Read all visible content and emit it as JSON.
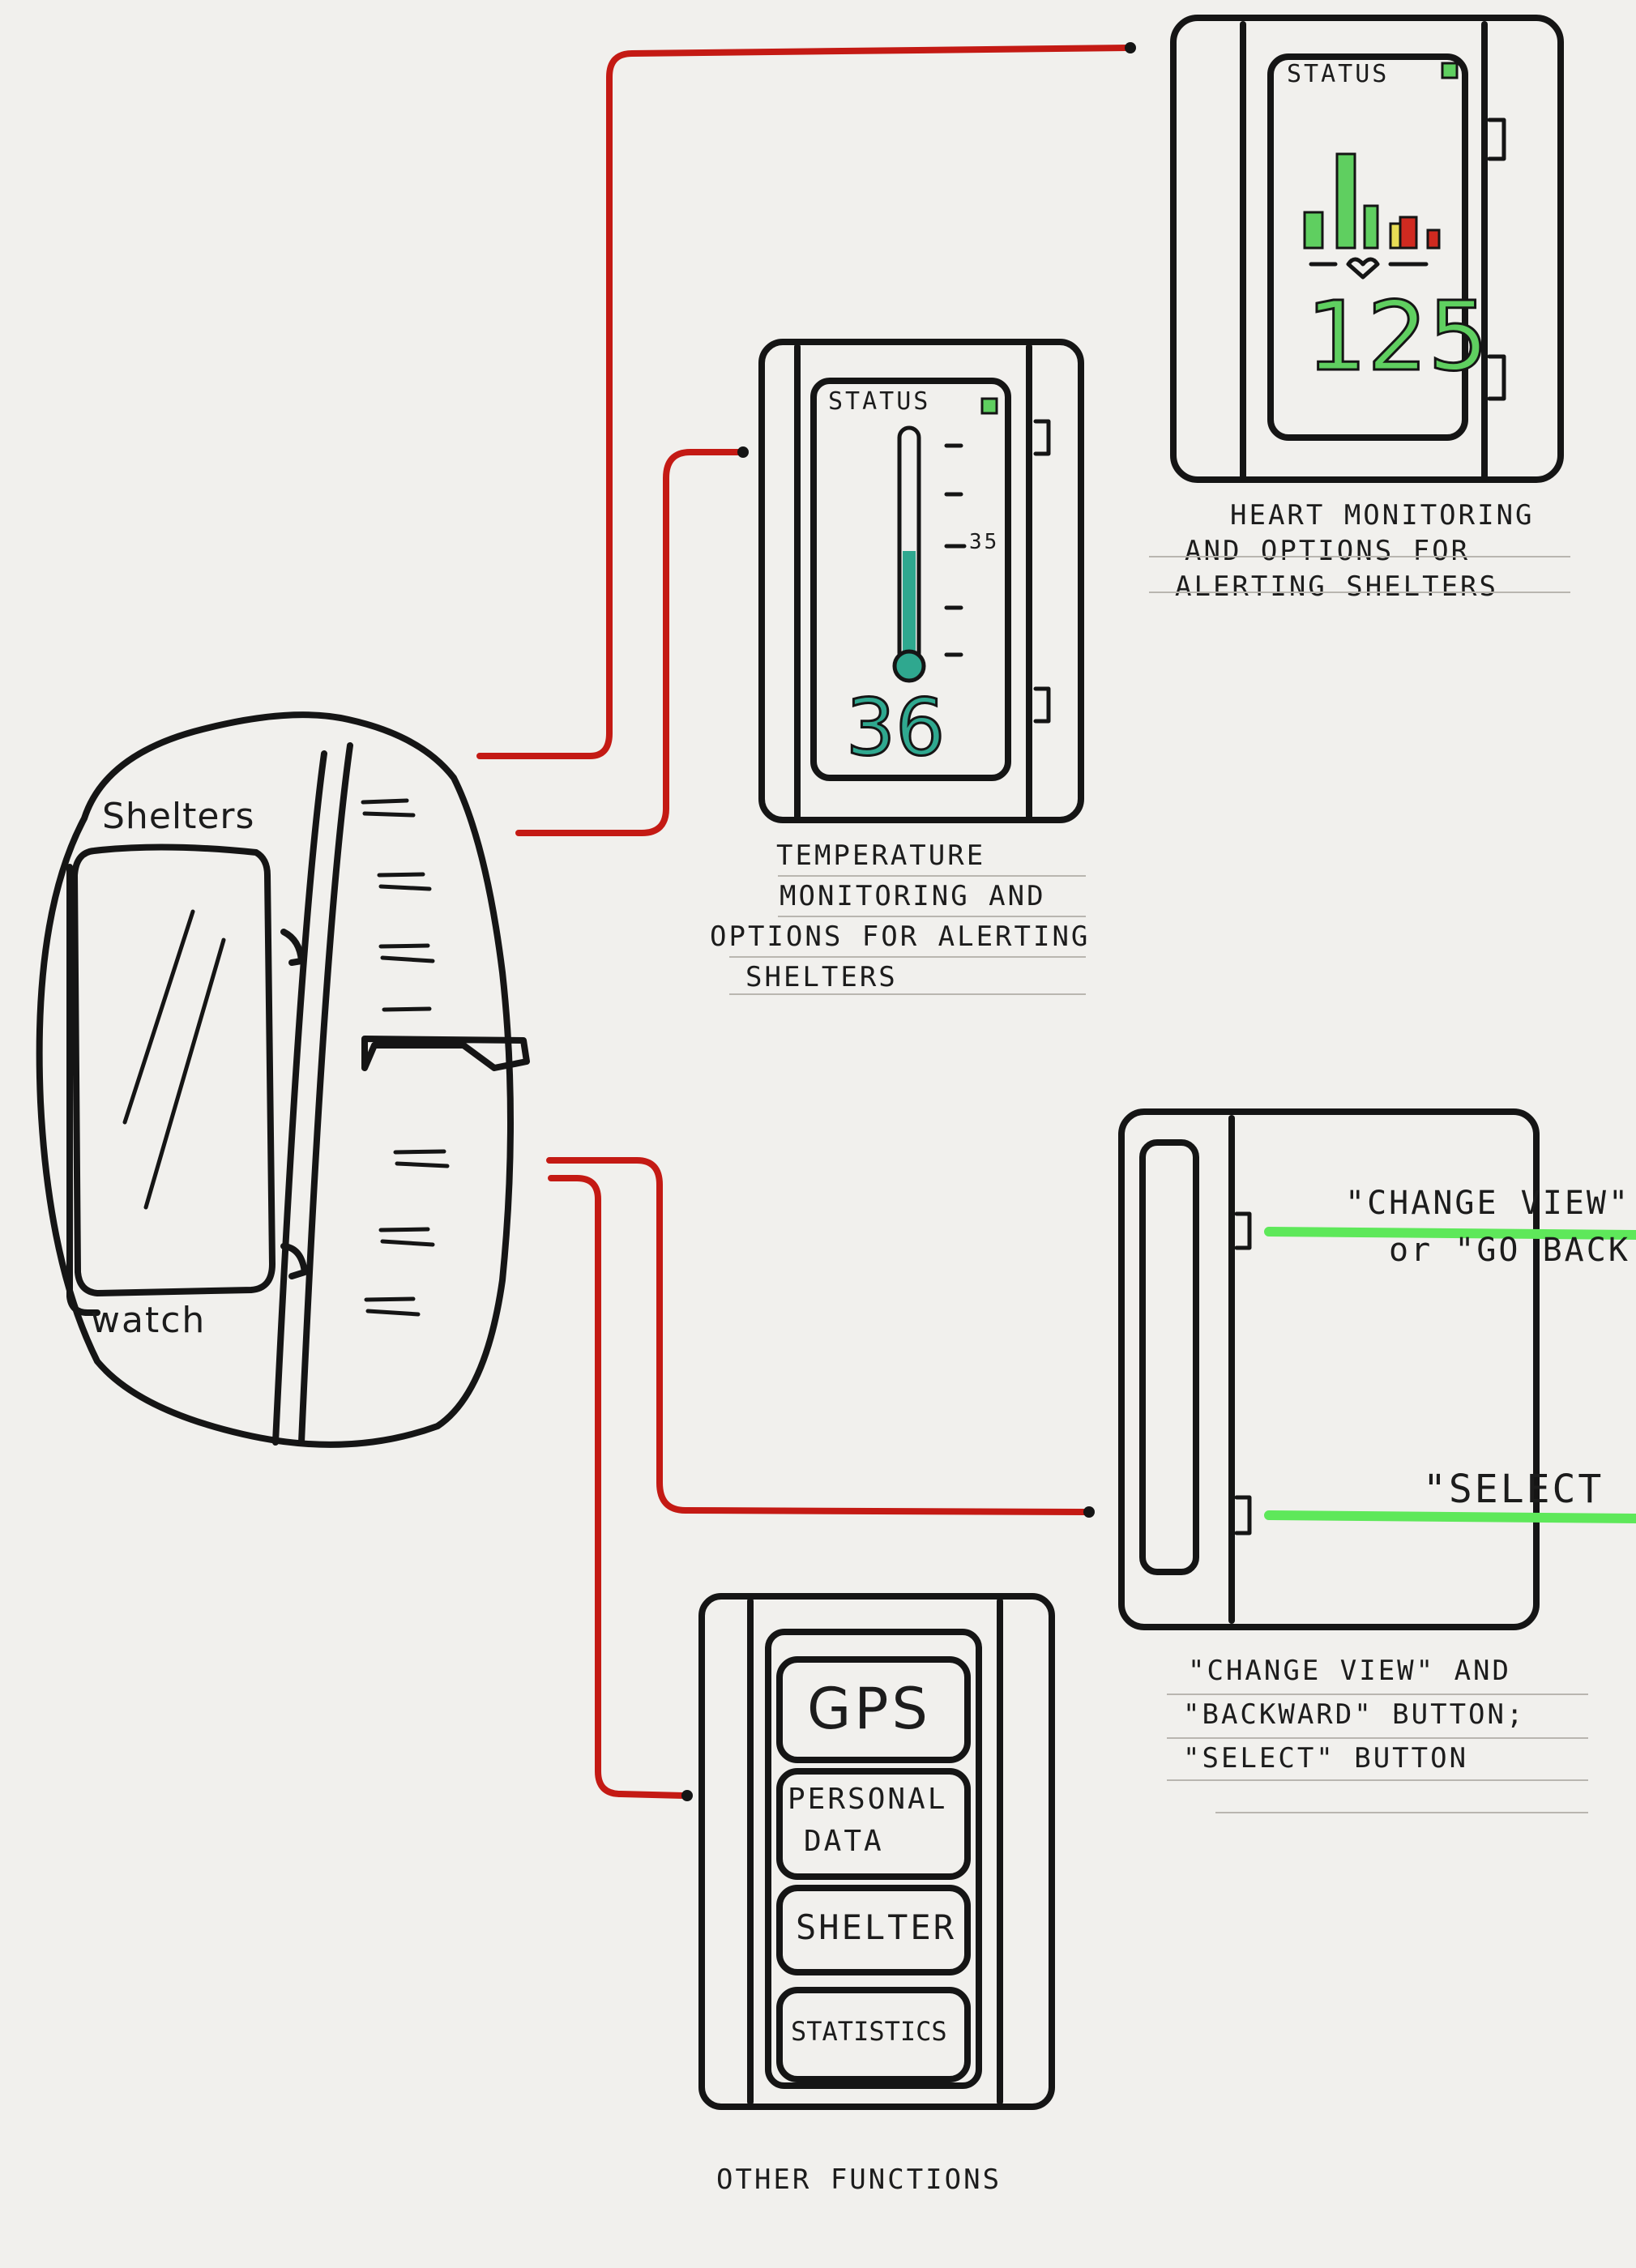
{
  "band": {
    "label_top": "Shelters",
    "label_bottom": "watch"
  },
  "heart_screen": {
    "status": "STATUS",
    "value": "125",
    "bar_colors": [
      "#5fcf60",
      "#5fcf60",
      "#5fcf60",
      "#e8dd55",
      "#d02a20",
      "#d02a20"
    ],
    "caption": [
      "HEART MONITORING",
      "AND OPTIONS FOR",
      "ALERTING SHELTERS"
    ]
  },
  "temp_screen": {
    "status": "STATUS",
    "value": "36",
    "tick_label": "35",
    "caption": [
      "TEMPERATURE",
      "MONITORING AND",
      "OPTIONS FOR ALERTING",
      "SHELTERS"
    ]
  },
  "buttons_screen": {
    "top_label_line1": "\"CHANGE VIEW\"",
    "top_label_line2": "or \"GO BACK",
    "bottom_label": "\"SELECT",
    "caption": [
      "\"CHANGE VIEW\" AND",
      "\"BACKWARD\" BUTTON;",
      "\"SELECT\" BUTTON"
    ]
  },
  "menu_screen": {
    "items": [
      "GPS",
      "PERSONAL",
      "DATA",
      "SHELTER",
      "STATISTICS"
    ],
    "caption": "OTHER FUNCTIONS"
  },
  "colors": {
    "connector": "#c41a14",
    "highlight": "#5ee85a",
    "ink": "#151515",
    "status_led": "#5fcf60",
    "thermo_fill": "#2fa88f"
  }
}
